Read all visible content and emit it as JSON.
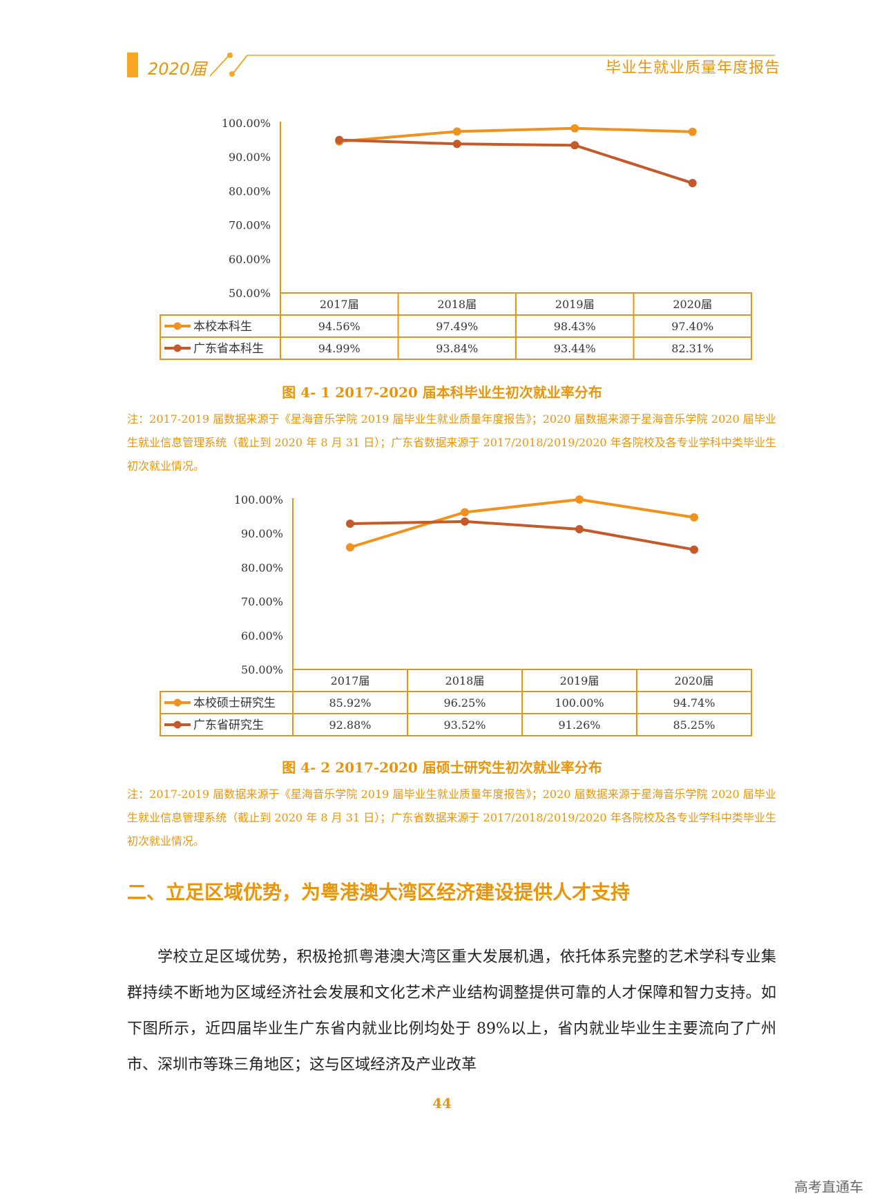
{
  "header": {
    "year": "2020届",
    "title": "毕业生就业质量年度报告"
  },
  "chart_data": [
    {
      "type": "line",
      "title": "",
      "xlabel": "",
      "ylabel": "",
      "categories": [
        "2017届",
        "2018届",
        "2019届",
        "2020届"
      ],
      "yticks": [
        "100.00%",
        "90.00%",
        "80.00%",
        "70.00%",
        "60.00%",
        "50.00%"
      ],
      "ylim": [
        50,
        100
      ],
      "grid": false,
      "series": [
        {
          "name": "本校本科生",
          "values": [
            94.56,
            97.49,
            98.43,
            97.4
          ],
          "labels": [
            "94.56%",
            "97.49%",
            "98.43%",
            "97.40%"
          ],
          "color": "#f0921e"
        },
        {
          "name": "广东省本科生",
          "values": [
            94.99,
            93.84,
            93.44,
            82.31
          ],
          "labels": [
            "94.99%",
            "93.84%",
            "93.44%",
            "82.31%"
          ],
          "color": "#c45a2a"
        }
      ]
    },
    {
      "type": "line",
      "title": "",
      "xlabel": "",
      "ylabel": "",
      "categories": [
        "2017届",
        "2018届",
        "2019届",
        "2020届"
      ],
      "yticks": [
        "100.00%",
        "90.00%",
        "80.00%",
        "70.00%",
        "60.00%",
        "50.00%"
      ],
      "ylim": [
        50,
        100
      ],
      "grid": false,
      "series": [
        {
          "name": "本校硕士研究生",
          "values": [
            85.92,
            96.25,
            100.0,
            94.74
          ],
          "labels": [
            "85.92%",
            "96.25%",
            "100.00%",
            "94.74%"
          ],
          "color": "#f0921e"
        },
        {
          "name": "广东省研究生",
          "values": [
            92.88,
            93.52,
            91.26,
            85.25
          ],
          "labels": [
            "92.88%",
            "93.52%",
            "91.26%",
            "85.25%"
          ],
          "color": "#c45a2a"
        }
      ]
    }
  ],
  "figures": [
    {
      "caption": "图 4- 1    2017-2020 届本科毕业生初次就业率分布",
      "note": "注：2017-2019 届数据来源于《星海音乐学院 2019 届毕业生就业质量年度报告》；2020 届数据来源于星海音乐学院 2020 届毕业生就业信息管理系统（截止到 2020 年 8 月 31 日）；广东省数据来源于 2017/2018/2019/2020 年各院校及各专业学科中类毕业生初次就业情况。"
    },
    {
      "caption": "图 4- 2    2017-2020 届硕士研究生初次就业率分布",
      "note": "注：2017-2019 届数据来源于《星海音乐学院 2019 届毕业生就业质量年度报告》；2020 届数据来源于星海音乐学院 2020 届毕业生就业信息管理系统（截止到 2020 年 8 月 31 日）；广东省数据来源于 2017/2018/2019/2020 年各院校及各专业学科中类毕业生初次就业情况。"
    }
  ],
  "section": {
    "heading": "二、立足区域优势，为粤港澳大湾区经济建设提供人才支持"
  },
  "body": {
    "paragraph": "学校立足区域优势，积极抢抓粤港澳大湾区重大发展机遇，依托体系完整的艺术学科专业集群持续不断地为区域经济社会发展和文化艺术产业结构调整提供可靠的人才保障和智力支持。如下图所示，近四届毕业生广东省内就业比例均处于 89%以上，省内就业毕业生主要流向了广州市、深圳市等珠三角地区；这与区域经济及产业改革"
  },
  "footer": {
    "page_number": "44",
    "watermark": "高考直通车"
  }
}
